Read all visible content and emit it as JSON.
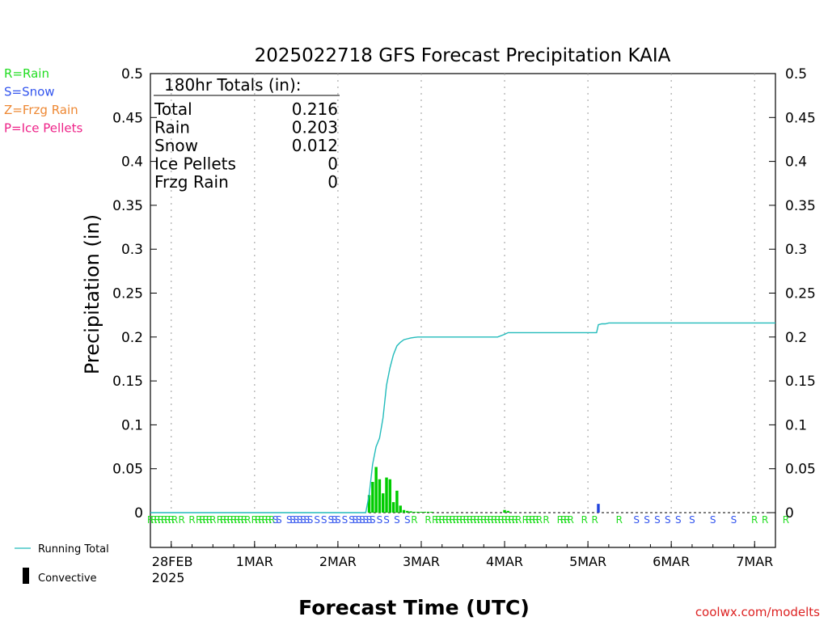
{
  "chart_data": {
    "type": "bar",
    "title": "2025022718 GFS Forecast Precipitation KAIA",
    "xlabel": "Forecast Time (UTC)",
    "ylabel": "Precipitation (in)",
    "ylim": [
      0,
      0.5
    ],
    "xlim": [
      "2025-02-27T18",
      "2025-03-07T06"
    ],
    "y_ticks": [
      "0",
      "0.05",
      "0.1",
      "0.15",
      "0.2",
      "0.25",
      "0.3",
      "0.35",
      "0.4",
      "0.45",
      "0.5"
    ],
    "x_ticks": [
      {
        "label": "28FEB",
        "sublabel": "2025",
        "time": "2025-02-28T00"
      },
      {
        "label": "1MAR",
        "time": "2025-03-01T00"
      },
      {
        "label": "2MAR",
        "time": "2025-03-02T00"
      },
      {
        "label": "3MAR",
        "time": "2025-03-03T00"
      },
      {
        "label": "4MAR",
        "time": "2025-03-04T00"
      },
      {
        "label": "5MAR",
        "time": "2025-03-05T00"
      },
      {
        "label": "6MAR",
        "time": "2025-03-06T00"
      },
      {
        "label": "7MAR",
        "time": "2025-03-07T00"
      }
    ],
    "grid": "vertical-dotted",
    "legend": {
      "types": [
        {
          "text": "R=Rain",
          "color": "#22dd22"
        },
        {
          "text": "S=Snow",
          "color": "#3355ee"
        },
        {
          "text": "Z=Frzg Rain",
          "color": "#ee8833"
        },
        {
          "text": "P=Ice Pellets",
          "color": "#ee2288"
        }
      ],
      "running_total": "Running Total",
      "convective": "Convective"
    },
    "totals": {
      "header": "180hr Totals (in):",
      "rows": [
        {
          "label": "Total",
          "value": "0.216"
        },
        {
          "label": "Rain",
          "value": "0.203"
        },
        {
          "label": "Snow",
          "value": "0.012"
        },
        {
          "label": "Ice Pellets",
          "value": "0"
        },
        {
          "label": "Frzg Rain",
          "value": "0"
        }
      ]
    },
    "series": [
      {
        "name": "Rain",
        "color": "#00cc00",
        "hours": [
          63.0,
          64.0,
          65.0,
          66.0,
          67.0,
          68.0,
          69.0,
          70.0,
          71.0,
          72.0,
          73.0,
          74.0,
          75.0,
          76.0,
          77.0,
          78.0,
          79.0,
          80.0,
          81.0,
          102.0,
          103.0
        ],
        "values": [
          0.02,
          0.035,
          0.052,
          0.038,
          0.022,
          0.04,
          0.038,
          0.012,
          0.025,
          0.008,
          0.003,
          0.002,
          0.0015,
          0.001,
          0.001,
          0.001,
          0.001,
          0.001,
          0.001,
          0.003,
          0.002
        ]
      },
      {
        "name": "Snow",
        "color": "#2244dd",
        "hours": [
          129.0
        ],
        "values": [
          0.01
        ]
      }
    ],
    "running_total": {
      "name": "Running Total",
      "color": "#22bbbb",
      "hours": [
        0,
        62,
        63,
        64,
        65,
        66,
        67,
        68,
        69,
        70,
        71,
        72,
        73,
        74,
        75,
        76,
        77,
        78,
        79,
        80,
        81,
        84,
        88,
        96,
        100,
        102,
        103,
        104,
        110,
        118,
        126,
        128.5,
        129,
        130,
        131,
        132,
        134,
        140,
        150,
        160,
        170,
        180
      ],
      "values": [
        0,
        0,
        0.02,
        0.055,
        0.075,
        0.085,
        0.108,
        0.145,
        0.165,
        0.18,
        0.19,
        0.194,
        0.197,
        0.198,
        0.199,
        0.1995,
        0.2,
        0.2,
        0.2,
        0.2,
        0.2,
        0.2,
        0.2,
        0.2,
        0.2,
        0.203,
        0.205,
        0.205,
        0.205,
        0.205,
        0.205,
        0.205,
        0.214,
        0.215,
        0.215,
        0.216,
        0.216,
        0.216,
        0.216,
        0.216,
        0.216,
        0.216
      ]
    },
    "precip_type_labels": [
      {
        "hours": [
          0,
          1,
          2,
          3,
          4,
          5,
          6,
          7,
          9,
          12,
          14,
          15,
          16,
          17,
          18,
          20,
          21,
          22,
          23,
          24,
          25,
          26,
          27,
          28,
          30,
          31,
          32,
          33,
          34,
          35
        ],
        "letter": "R",
        "color": "#22dd22"
      },
      {
        "hours": [
          36,
          37,
          40,
          41,
          42,
          43,
          44,
          45,
          46,
          48,
          50,
          52,
          53,
          54,
          56,
          58,
          59,
          60,
          61,
          62,
          63,
          64,
          66,
          68,
          71,
          74
        ],
        "letter": "S",
        "color": "#3355ee"
      },
      {
        "hours": [
          76,
          80,
          82,
          83,
          84,
          85,
          86,
          87,
          88,
          89,
          90,
          91,
          92,
          93,
          94,
          95,
          96,
          97,
          98,
          99,
          100,
          101,
          102,
          103,
          104,
          105,
          106,
          108,
          109,
          110,
          111,
          112,
          114,
          118,
          119,
          120,
          121,
          125,
          128,
          135
        ],
        "letter": "R",
        "color": "#22dd22"
      },
      {
        "hours": [
          140,
          143,
          146,
          149,
          152,
          156,
          162,
          168
        ],
        "letter": "S",
        "color": "#3355ee"
      },
      {
        "hours": [
          174,
          177,
          183
        ],
        "letter": "R",
        "color": "#22dd22"
      }
    ],
    "credit": "coolwx.com/modelts"
  }
}
